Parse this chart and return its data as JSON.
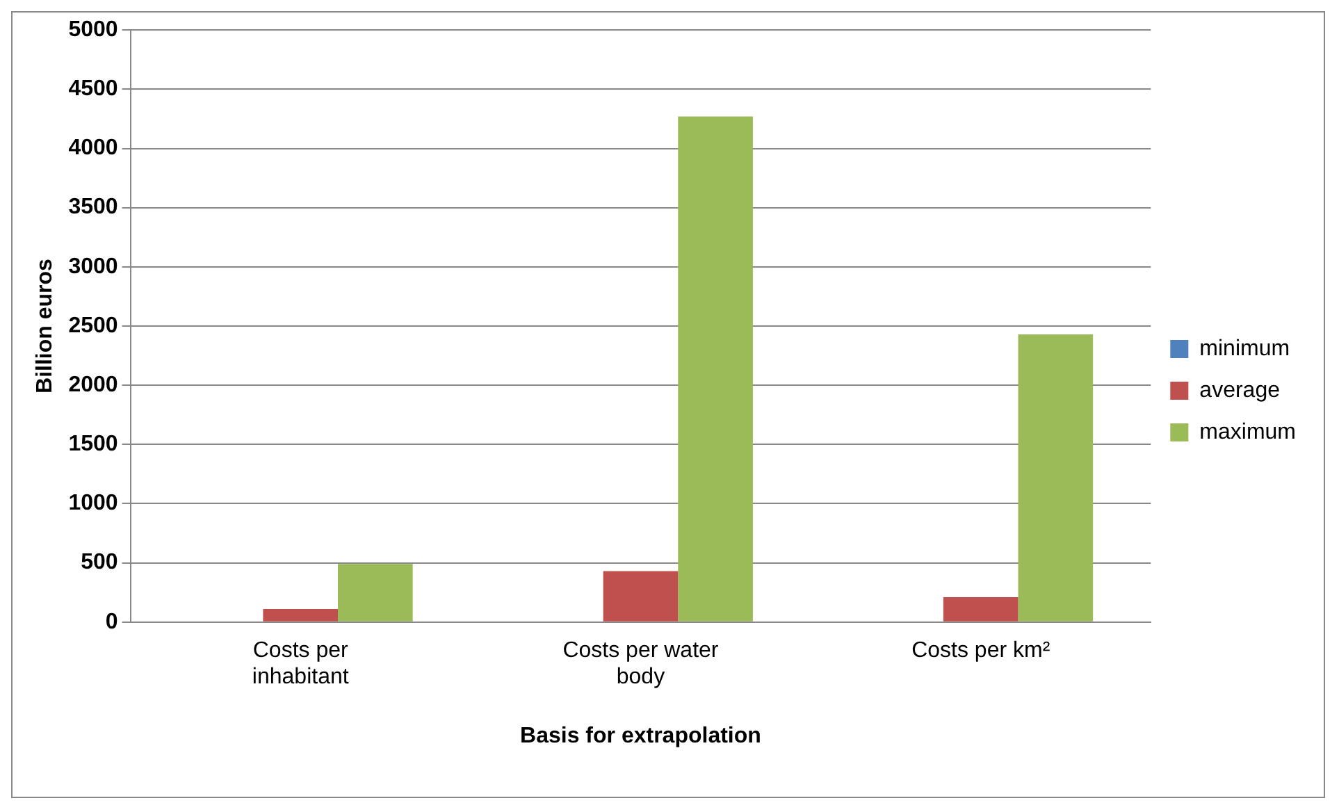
{
  "chart_data": {
    "type": "bar",
    "xlabel": "Basis for extrapolation",
    "ylabel": "Billion euros",
    "categories": [
      "Costs per inhabitant",
      "Costs per water body",
      "Costs per km²"
    ],
    "series": [
      {
        "name": "minimum",
        "color": "#4f81bd",
        "values": [
          0,
          0,
          0
        ]
      },
      {
        "name": "average",
        "color": "#c0504d",
        "values": [
          110,
          430,
          210
        ]
      },
      {
        "name": "maximum",
        "color": "#9bbb59",
        "values": [
          490,
          4270,
          2430
        ]
      }
    ],
    "ylim": [
      0,
      5000
    ],
    "yticks": [
      0,
      500,
      1000,
      1500,
      2000,
      2500,
      3000,
      3500,
      4000,
      4500,
      5000
    ],
    "grid": "y",
    "legend": "right"
  }
}
